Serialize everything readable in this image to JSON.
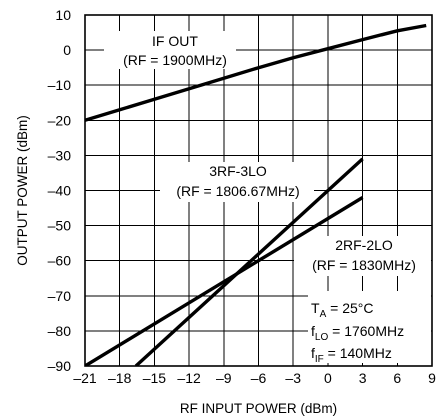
{
  "chart_data": {
    "type": "line",
    "xlabel": "RF INPUT POWER (dBm)",
    "ylabel": "OUTPUT POWER (dBm)",
    "xlim": [
      -21,
      9
    ],
    "ylim": [
      -90,
      10
    ],
    "x_ticks": [
      -21,
      -18,
      -15,
      -12,
      -9,
      -6,
      -3,
      0,
      3,
      6,
      9
    ],
    "y_ticks": [
      10,
      0,
      -10,
      -20,
      -30,
      -40,
      -50,
      -60,
      -70,
      -80,
      -90
    ],
    "x_tick_labels": [
      "–21",
      "–18",
      "–15",
      "–12",
      "–9",
      "–6",
      "–3",
      "0",
      "3",
      "6",
      "9"
    ],
    "y_tick_labels": [
      "10",
      "0",
      "–10",
      "–20",
      "–30",
      "–40",
      "–50",
      "–60",
      "–70",
      "–80",
      "–90"
    ],
    "grid": true,
    "series": [
      {
        "label_lines": [
          "IF OUT",
          "(RF = 1900MHz)"
        ],
        "x": [
          -21,
          -18,
          -15,
          -12,
          -9,
          -6,
          -3,
          0,
          3,
          6,
          8.5
        ],
        "y": [
          -20,
          -17,
          -14,
          -11,
          -8,
          -5,
          -2.2,
          0.4,
          3,
          5.5,
          7
        ]
      },
      {
        "label_lines": [
          "3RF-3LO",
          "(RF = 1806.67MHz)"
        ],
        "x": [
          -16.6,
          3
        ],
        "y": [
          -90,
          -31
        ]
      },
      {
        "label_lines": [
          "2RF-2LO",
          "(RF = 1830MHz)"
        ],
        "x": [
          -21,
          3
        ],
        "y": [
          -90,
          -42
        ]
      }
    ],
    "conditions": [
      {
        "base": "T",
        "sub": "A",
        "rest": " = 25°C"
      },
      {
        "base": "f",
        "sub": "LO",
        "rest": " = 1760MHz"
      },
      {
        "base": "f",
        "sub": "IF",
        "rest": " = 140MHz"
      }
    ]
  }
}
